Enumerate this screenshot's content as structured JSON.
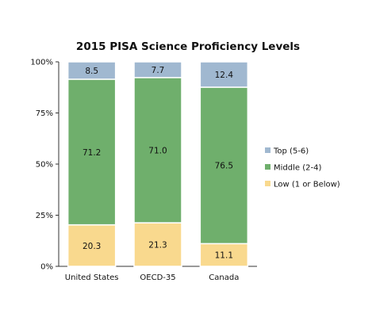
{
  "chart_data": {
    "type": "bar",
    "stacked": true,
    "title": "2015 PISA Science Proficiency Levels",
    "categories": [
      "United States",
      "OECD-35",
      "Canada"
    ],
    "series": [
      {
        "name": "Low (1 or Below)",
        "values": [
          20.3,
          21.3,
          11.1
        ],
        "labels": [
          "20.3",
          "21.3",
          "11.1"
        ],
        "color": "#f9d98e"
      },
      {
        "name": "Middle (2-4)",
        "values": [
          71.2,
          71.0,
          76.5
        ],
        "labels": [
          "71.2",
          "71.0",
          "76.5"
        ],
        "color": "#6faf6c"
      },
      {
        "name": "Top (5-6)",
        "values": [
          8.5,
          7.7,
          12.4
        ],
        "labels": [
          "8.5",
          "7.7",
          "12.4"
        ],
        "color": "#a0b8d0"
      }
    ],
    "legend_order": [
      2,
      1,
      0
    ],
    "y_ticks": [
      0,
      25,
      50,
      75,
      100
    ],
    "y_tick_labels": [
      "0%",
      "25%",
      "50%",
      "75%",
      "100%"
    ],
    "ylim": [
      0,
      100
    ],
    "grid": false,
    "legend_position": "right"
  }
}
